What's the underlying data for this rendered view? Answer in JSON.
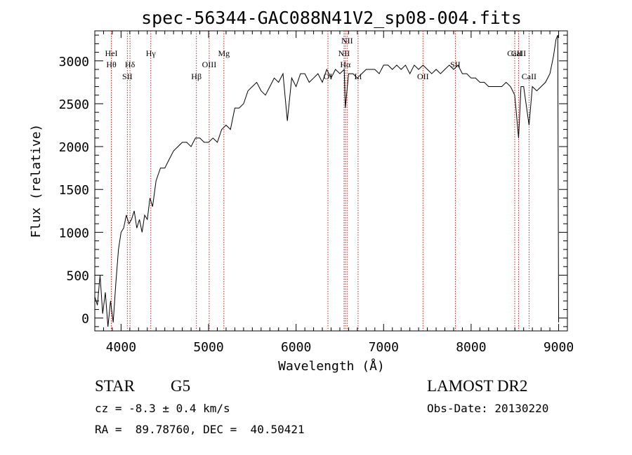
{
  "colors": {
    "ink": "#000000",
    "line_markers": "#cc2020",
    "background": "#ffffff"
  },
  "chart_data": {
    "type": "line",
    "title": "spec-56344-GAC088N41V2_sp08-004.fits",
    "xlabel": "Wavelength (Å)",
    "ylabel": "Flux (relative)",
    "xlim": [
      3700,
      9100
    ],
    "ylim": [
      -150,
      3350
    ],
    "x_ticks": [
      4000,
      5000,
      6000,
      7000,
      8000,
      9000
    ],
    "x_tick_labels": [
      "4000",
      "5000",
      "6000",
      "7000",
      "8000",
      "9000"
    ],
    "y_ticks": [
      0,
      500,
      1000,
      1500,
      2000,
      2500,
      3000
    ],
    "y_tick_labels": [
      "0",
      "500",
      "1000",
      "1500",
      "2000",
      "2500",
      "3000"
    ],
    "grid": false,
    "series": [
      {
        "x": [
          3700,
          3730,
          3760,
          3790,
          3820,
          3850,
          3880,
          3910,
          3940,
          3970,
          4000,
          4030,
          4060,
          4090,
          4120,
          4150,
          4180,
          4210,
          4240,
          4270,
          4300,
          4330,
          4360,
          4400,
          4450,
          4500,
          4550,
          4600,
          4650,
          4700,
          4750,
          4800,
          4850,
          4900,
          4950,
          5000,
          5050,
          5100,
          5150,
          5200,
          5250,
          5300,
          5350,
          5400,
          5450,
          5500,
          5550,
          5600,
          5650,
          5700,
          5750,
          5800,
          5850,
          5900,
          5950,
          6000,
          6050,
          6100,
          6150,
          6200,
          6250,
          6300,
          6350,
          6400,
          6450,
          6500,
          6550,
          6563,
          6600,
          6650,
          6700,
          6750,
          6800,
          6850,
          6900,
          6950,
          7000,
          7050,
          7100,
          7150,
          7200,
          7250,
          7300,
          7350,
          7400,
          7450,
          7500,
          7550,
          7600,
          7650,
          7700,
          7750,
          7800,
          7850,
          7900,
          7950,
          8000,
          8050,
          8100,
          8150,
          8200,
          8250,
          8300,
          8350,
          8400,
          8450,
          8498,
          8542,
          8570,
          8600,
          8662,
          8700,
          8750,
          8800,
          8850,
          8900,
          8940,
          8970,
          8990,
          9000
        ],
        "y": [
          250,
          150,
          500,
          50,
          300,
          -100,
          200,
          -50,
          400,
          800,
          1000,
          1050,
          1200,
          1100,
          1150,
          1250,
          1050,
          1150,
          1000,
          1200,
          1150,
          1400,
          1300,
          1600,
          1750,
          1750,
          1850,
          1950,
          2000,
          2050,
          2050,
          2000,
          2100,
          2100,
          2050,
          2050,
          2100,
          2050,
          2200,
          2250,
          2200,
          2450,
          2450,
          2500,
          2650,
          2700,
          2750,
          2650,
          2600,
          2700,
          2800,
          2750,
          2850,
          2300,
          2800,
          2700,
          2850,
          2850,
          2750,
          2800,
          2850,
          2750,
          2900,
          2800,
          2900,
          2850,
          2900,
          2450,
          2850,
          2850,
          2800,
          2850,
          2900,
          2900,
          2900,
          2850,
          2950,
          2950,
          2900,
          2950,
          2900,
          2950,
          2850,
          2950,
          2900,
          2950,
          2900,
          2850,
          2900,
          2850,
          2900,
          2950,
          2900,
          2950,
          2850,
          2850,
          2800,
          2800,
          2750,
          2750,
          2700,
          2700,
          2700,
          2700,
          2750,
          2700,
          2600,
          2100,
          2700,
          2700,
          2250,
          2700,
          2650,
          2700,
          2750,
          2850,
          3050,
          3250,
          3300,
          -50
        ]
      }
    ],
    "lines": [
      {
        "x": 3889,
        "label": "HeI",
        "row": 1
      },
      {
        "x": 3889,
        "label": "Hθ",
        "row": 2
      },
      {
        "x": 4072,
        "label": "SII",
        "row": 3
      },
      {
        "x": 4102,
        "label": "Hδ",
        "row": 2
      },
      {
        "x": 4340,
        "label": "Hγ",
        "row": 1
      },
      {
        "x": 4861,
        "label": "Hβ",
        "row": 3
      },
      {
        "x": 5007,
        "label": "OIII",
        "row": 2
      },
      {
        "x": 5175,
        "label": "Mg",
        "row": 1
      },
      {
        "x": 6364,
        "label": "OI",
        "row": 3
      },
      {
        "x": 6548,
        "label": "NII",
        "row": 1
      },
      {
        "x": 6563,
        "label": "Hα",
        "row": 2
      },
      {
        "x": 6583,
        "label": "NII",
        "row": 0
      },
      {
        "x": 6708,
        "label": "Li",
        "row": 3
      },
      {
        "x": 7450,
        "label": "OII",
        "row": 3
      },
      {
        "x": 7820,
        "label": "SII",
        "row": 2
      },
      {
        "x": 8498,
        "label": "CaII",
        "row": 1
      },
      {
        "x": 8542,
        "label": "CaII",
        "row": 1
      },
      {
        "x": 8662,
        "label": "CaII",
        "row": 3
      }
    ]
  },
  "footer": {
    "object_type": "STAR",
    "subclass": "G5",
    "survey": "LAMOST DR2",
    "redshift": "cz = -8.3 ± 0.4 km/s",
    "obs_date": "Obs-Date: 20130220",
    "coords": "RA =  89.78760, DEC =  40.50421"
  }
}
